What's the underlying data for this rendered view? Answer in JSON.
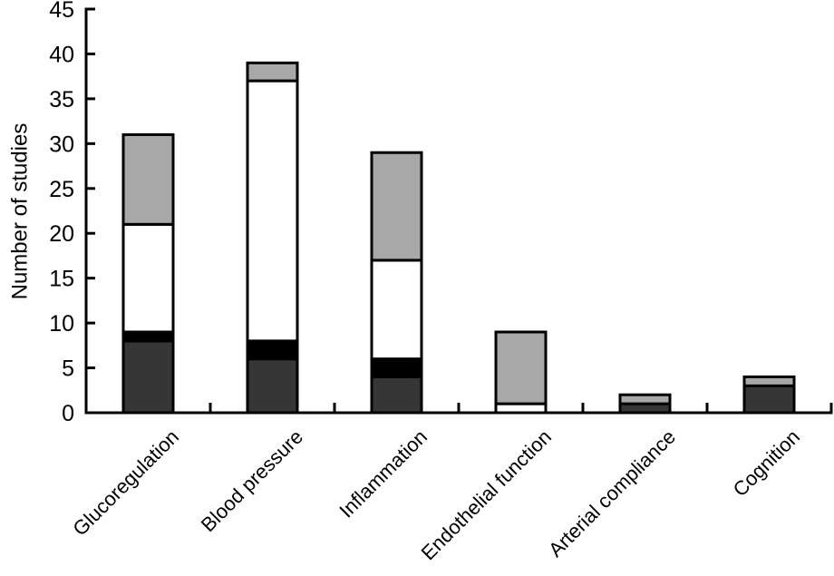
{
  "figure": {
    "background": "#ffffff"
  },
  "chart_data": {
    "type": "bar",
    "stacked": true,
    "title": "",
    "ylabel": "Number of studies",
    "xlabel": "",
    "ylim": [
      0,
      45
    ],
    "yticks": [
      0,
      5,
      10,
      15,
      20,
      25,
      30,
      35,
      40,
      45
    ],
    "grid": false,
    "legend": "none",
    "categories": [
      "Glucoregulation",
      "Blood pressure",
      "Inflammation",
      "Endothelial function",
      "Arterial compliance",
      "Cognition"
    ],
    "series": [
      {
        "name": "dark-grey",
        "color": "#363636",
        "values": [
          8,
          6,
          4,
          0,
          1,
          3
        ]
      },
      {
        "name": "black",
        "color": "#000000",
        "values": [
          1,
          2,
          2,
          0,
          0,
          0
        ]
      },
      {
        "name": "white",
        "color": "#ffffff",
        "values": [
          12,
          29,
          11,
          1,
          0,
          0
        ]
      },
      {
        "name": "grey",
        "color": "#a8a8a8",
        "values": [
          10,
          2,
          12,
          8,
          1,
          1
        ]
      }
    ],
    "totals": [
      31,
      39,
      29,
      9,
      2,
      4
    ],
    "axis_color": "#000000",
    "bar_border_color": "#000000"
  }
}
